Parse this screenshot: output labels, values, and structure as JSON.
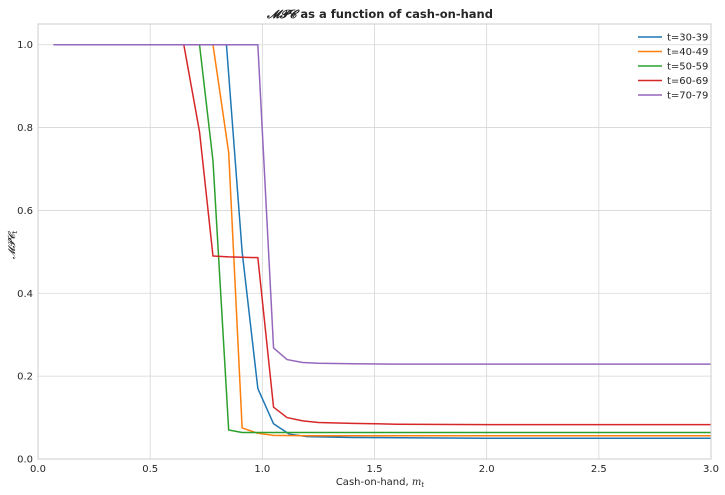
{
  "chart_data": {
    "type": "line",
    "title_math": "𝓜𝓟𝓒",
    "title_text": " as a function of cash-on-hand",
    "xlabel_text": "Cash-on-hand, ",
    "xlabel_math": "m",
    "xlabel_sub": "t",
    "ylabel_math": "𝓜𝓟𝓒",
    "ylabel_sub": "t",
    "xlim": [
      0,
      3
    ],
    "ylim": [
      0,
      1.05
    ],
    "xticks": [
      0.0,
      0.5,
      1.0,
      1.5,
      2.0,
      2.5,
      3.0
    ],
    "yticks": [
      0.0,
      0.2,
      0.4,
      0.6,
      0.8,
      1.0
    ],
    "xtick_labels": [
      "0.0",
      "0.5",
      "1.0",
      "1.5",
      "2.0",
      "2.5",
      "3.0"
    ],
    "ytick_labels": [
      "0.0",
      "0.2",
      "0.4",
      "0.6",
      "0.8",
      "1.0"
    ],
    "grid": true,
    "legend_position": "top-right",
    "series": [
      {
        "name": "t=30-39",
        "color": "#1f77b4",
        "x": [
          0.07,
          0.84,
          0.91,
          0.98,
          1.05,
          1.12,
          1.2,
          1.4,
          1.7,
          2.0,
          2.5,
          3.0
        ],
        "y": [
          1.0,
          1.0,
          0.5,
          0.17,
          0.085,
          0.06,
          0.054,
          0.052,
          0.051,
          0.05,
          0.05,
          0.05
        ]
      },
      {
        "name": "t=40-49",
        "color": "#ff7f0e",
        "x": [
          0.07,
          0.78,
          0.85,
          0.91,
          0.98,
          1.05,
          1.2,
          1.5,
          2.0,
          2.5,
          3.0
        ],
        "y": [
          1.0,
          1.0,
          0.74,
          0.075,
          0.062,
          0.057,
          0.056,
          0.056,
          0.056,
          0.056,
          0.056
        ]
      },
      {
        "name": "t=50-59",
        "color": "#2ca02c",
        "x": [
          0.07,
          0.72,
          0.78,
          0.85,
          0.91,
          1.0,
          1.2,
          1.5,
          2.0,
          2.5,
          3.0
        ],
        "y": [
          1.0,
          1.0,
          0.72,
          0.07,
          0.064,
          0.064,
          0.064,
          0.064,
          0.064,
          0.064,
          0.064
        ]
      },
      {
        "name": "t=60-69",
        "color": "#d62728",
        "x": [
          0.07,
          0.65,
          0.72,
          0.78,
          0.85,
          0.91,
          0.98,
          1.05,
          1.11,
          1.18,
          1.25,
          1.4,
          1.6,
          2.0,
          2.5,
          3.0
        ],
        "y": [
          1.0,
          1.0,
          0.79,
          0.49,
          0.488,
          0.487,
          0.486,
          0.125,
          0.1,
          0.092,
          0.088,
          0.086,
          0.084,
          0.083,
          0.083,
          0.083
        ]
      },
      {
        "name": "t=70-79",
        "color": "#9467bd",
        "x": [
          0.07,
          0.98,
          1.05,
          1.11,
          1.18,
          1.25,
          1.4,
          1.6,
          2.0,
          2.5,
          3.0
        ],
        "y": [
          1.0,
          1.0,
          0.268,
          0.24,
          0.233,
          0.231,
          0.23,
          0.229,
          0.229,
          0.229,
          0.229
        ]
      }
    ]
  }
}
